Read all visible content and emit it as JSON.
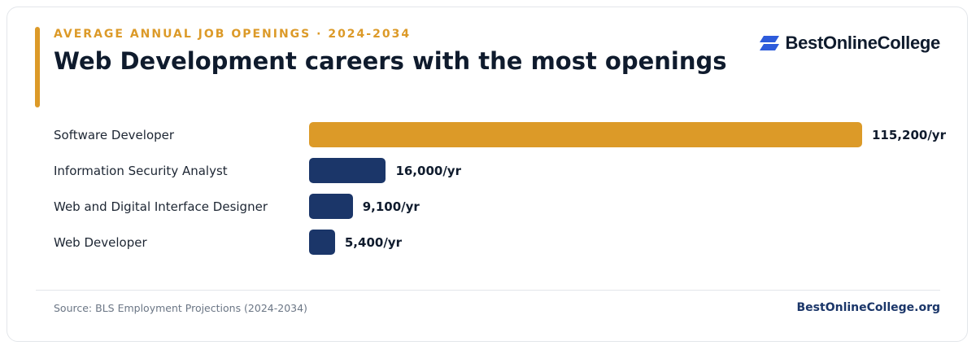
{
  "header": {
    "eyebrow": "AVERAGE ANNUAL JOB OPENINGS · 2024-2034",
    "title": "Web Development careers with the most openings"
  },
  "brand": {
    "logo_text": "BestOnlineCollege",
    "logo_icon": "stacked-parallelogram-icon",
    "logo_color": "#2d5bdb"
  },
  "chart_data": {
    "type": "bar",
    "orientation": "horizontal",
    "categories": [
      "Software Developer",
      "Information Security Analyst",
      "Web and Digital Interface Designer",
      "Web Developer"
    ],
    "values": [
      115200,
      16000,
      9100,
      5400
    ],
    "value_labels": [
      "115,200/yr",
      "16,000/yr",
      "9,100/yr",
      "5,400/yr"
    ],
    "xlim": [
      0,
      115200
    ],
    "grid": false,
    "legend": "none",
    "colors": [
      "#dc9a28",
      "#1b3669",
      "#1b3669",
      "#1b3669"
    ]
  },
  "footer": {
    "source": "Source: BLS Employment Projections (2024-2034)",
    "site": "BestOnlineCollege.org"
  },
  "colors": {
    "accent": "#dc9a28",
    "navy": "#1b3669",
    "text": "#0f1b2d"
  }
}
